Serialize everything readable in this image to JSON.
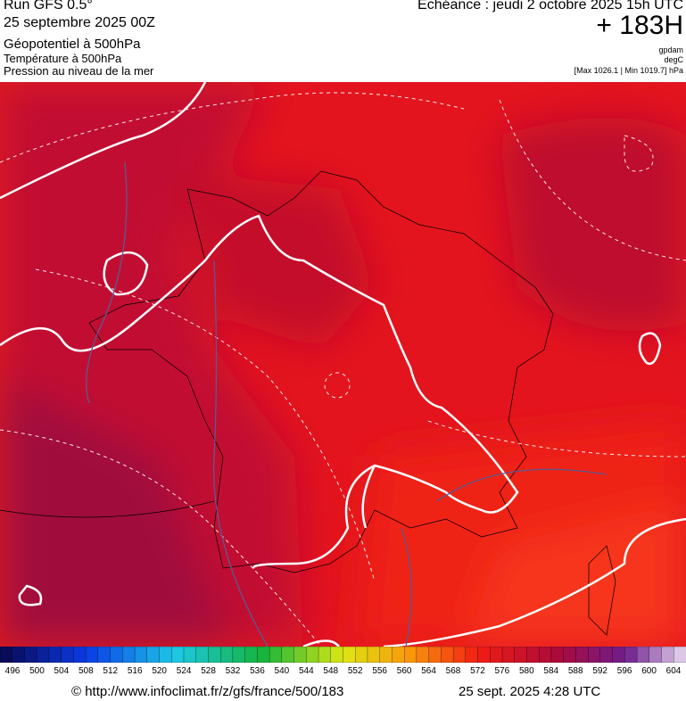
{
  "header": {
    "run": "Run GFS 0.5°",
    "date": "25 septembre 2025 00Z",
    "line1": "Géopotentiel à 500hPa",
    "line2": "Température à 500hPa",
    "line3": "Pression au niveau de la mer",
    "echeance": "Echéance : jeudi 2 octobre 2025 15h UTC",
    "lead": "+ 183H",
    "unit1": "gpdam",
    "unit2": "degC",
    "range": "[Max 1026.1 | Min 1019.7] hPa"
  },
  "colorbar": {
    "labels": [
      496,
      500,
      504,
      508,
      512,
      516,
      520,
      524,
      528,
      532,
      536,
      540,
      544,
      548,
      552,
      556,
      560,
      564,
      568,
      572,
      576,
      580,
      584,
      588,
      592,
      596,
      600,
      604
    ]
  },
  "footer": {
    "url": "© http://www.infoclimat.fr/z/gfs/france/500/183",
    "timestamp": "25 sept. 2025  4:28 UTC"
  }
}
